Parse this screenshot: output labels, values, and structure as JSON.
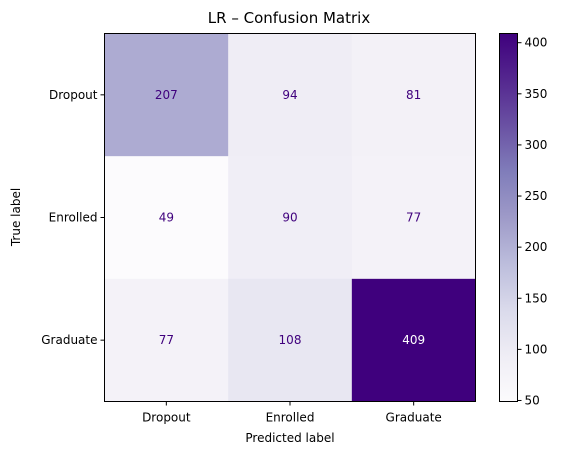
{
  "chart_data": {
    "type": "heatmap",
    "title": "LR – Confusion Matrix",
    "xlabel": "Predicted label",
    "ylabel": "True label",
    "x_categories": [
      "Dropout",
      "Enrolled",
      "Graduate"
    ],
    "y_categories": [
      "Dropout",
      "Enrolled",
      "Graduate"
    ],
    "values": [
      [
        207,
        94,
        81
      ],
      [
        49,
        90,
        77
      ],
      [
        77,
        108,
        409
      ]
    ],
    "colormap": "Purples",
    "colorbar": {
      "min": 49,
      "max": 409,
      "ticks": [
        50,
        100,
        150,
        200,
        250,
        300,
        350,
        400
      ]
    }
  }
}
